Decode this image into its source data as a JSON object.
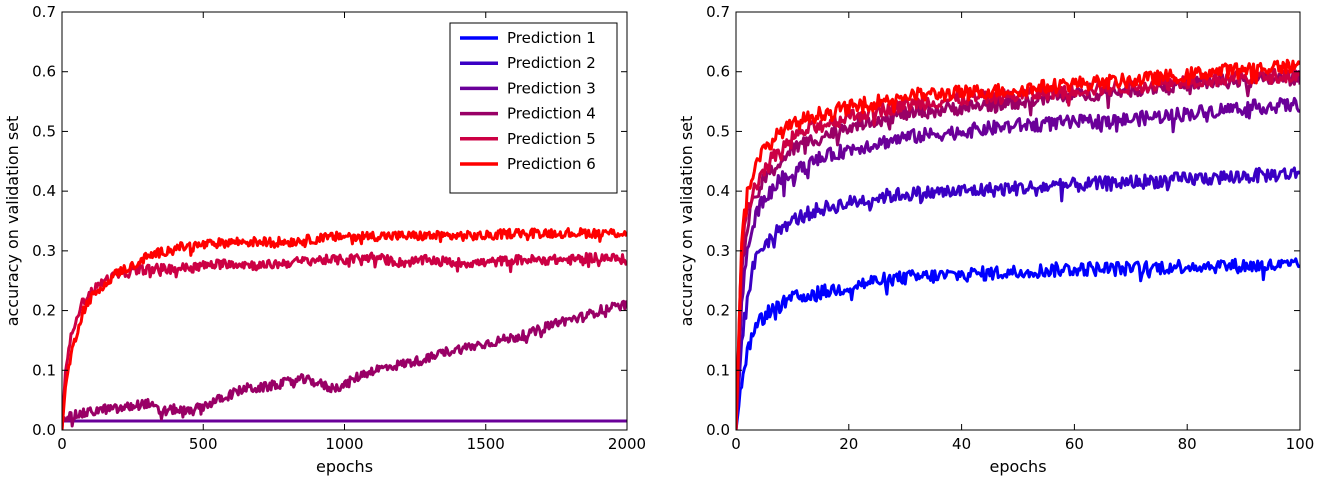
{
  "chart_data": [
    {
      "type": "line",
      "title": "",
      "xlabel": "epochs",
      "ylabel": "accuracy on validation set",
      "xlim": [
        0,
        2000
      ],
      "ylim": [
        0,
        0.7
      ],
      "xticks": [
        0,
        500,
        1000,
        1500,
        2000
      ],
      "yticks": [
        0.0,
        0.1,
        0.2,
        0.3,
        0.4,
        0.5,
        0.6,
        0.7
      ],
      "grid": false,
      "legend_position": "top-right",
      "series": [
        {
          "name": "Prediction 1",
          "color": "#0000ff",
          "x": [
            0,
            20,
            100,
            500,
            1000,
            1500,
            2000
          ],
          "y": [
            0.015,
            0.015,
            0.015,
            0.015,
            0.015,
            0.015,
            0.015
          ]
        },
        {
          "name": "Prediction 2",
          "color": "#3a00c4",
          "x": [
            0,
            20,
            100,
            500,
            1000,
            1500,
            2000
          ],
          "y": [
            0.015,
            0.015,
            0.015,
            0.015,
            0.015,
            0.015,
            0.015
          ]
        },
        {
          "name": "Prediction 3",
          "color": "#6a0099",
          "x": [
            0,
            20,
            100,
            500,
            1000,
            1500,
            2000
          ],
          "y": [
            0.015,
            0.015,
            0.015,
            0.015,
            0.015,
            0.015,
            0.015
          ]
        },
        {
          "name": "Prediction 4",
          "color": "#990066",
          "x": [
            0,
            50,
            100,
            150,
            200,
            250,
            300,
            350,
            400,
            450,
            500,
            550,
            600,
            650,
            700,
            750,
            800,
            850,
            900,
            950,
            1000,
            1050,
            1100,
            1150,
            1200,
            1250,
            1300,
            1350,
            1400,
            1450,
            1500,
            1550,
            1600,
            1650,
            1700,
            1750,
            1800,
            1850,
            1900,
            1950,
            2000
          ],
          "y": [
            0.02,
            0.025,
            0.03,
            0.035,
            0.035,
            0.04,
            0.045,
            0.03,
            0.035,
            0.03,
            0.04,
            0.05,
            0.06,
            0.07,
            0.07,
            0.075,
            0.08,
            0.085,
            0.08,
            0.07,
            0.075,
            0.09,
            0.1,
            0.105,
            0.11,
            0.115,
            0.12,
            0.13,
            0.135,
            0.14,
            0.145,
            0.15,
            0.155,
            0.16,
            0.17,
            0.18,
            0.185,
            0.19,
            0.2,
            0.205,
            0.21
          ]
        },
        {
          "name": "Prediction 5",
          "color": "#cc0044",
          "x": [
            0,
            10,
            25,
            50,
            75,
            100,
            150,
            200,
            250,
            300,
            400,
            500,
            600,
            700,
            800,
            900,
            1000,
            1100,
            1200,
            1300,
            1400,
            1500,
            1600,
            1700,
            1800,
            1900,
            2000
          ],
          "y": [
            0.0,
            0.08,
            0.14,
            0.19,
            0.215,
            0.23,
            0.25,
            0.26,
            0.265,
            0.27,
            0.27,
            0.275,
            0.28,
            0.275,
            0.28,
            0.285,
            0.285,
            0.29,
            0.28,
            0.285,
            0.28,
            0.28,
            0.285,
            0.285,
            0.285,
            0.29,
            0.285
          ]
        },
        {
          "name": "Prediction 6",
          "color": "#ff0000",
          "x": [
            0,
            10,
            25,
            50,
            75,
            100,
            150,
            200,
            250,
            300,
            400,
            500,
            600,
            700,
            800,
            900,
            1000,
            1100,
            1200,
            1300,
            1400,
            1500,
            1600,
            1700,
            1800,
            1900,
            2000
          ],
          "y": [
            0.0,
            0.06,
            0.11,
            0.16,
            0.2,
            0.22,
            0.245,
            0.265,
            0.275,
            0.29,
            0.305,
            0.31,
            0.315,
            0.315,
            0.315,
            0.32,
            0.325,
            0.325,
            0.325,
            0.325,
            0.325,
            0.325,
            0.33,
            0.33,
            0.33,
            0.33,
            0.33
          ]
        }
      ]
    },
    {
      "type": "line",
      "title": "",
      "xlabel": "epochs",
      "ylabel": "accuracy on validation set",
      "xlim": [
        0,
        100
      ],
      "ylim": [
        0,
        0.7
      ],
      "xticks": [
        0,
        20,
        40,
        60,
        80,
        100
      ],
      "yticks": [
        0.0,
        0.1,
        0.2,
        0.3,
        0.4,
        0.5,
        0.6,
        0.7
      ],
      "grid": false,
      "series": [
        {
          "name": "Prediction 1",
          "color": "#0000ff",
          "x": [
            0,
            1,
            2,
            3,
            4,
            5,
            6,
            8,
            10,
            12,
            15,
            20,
            25,
            30,
            40,
            50,
            60,
            70,
            80,
            90,
            100
          ],
          "y": [
            0.0,
            0.08,
            0.13,
            0.16,
            0.18,
            0.19,
            0.2,
            0.21,
            0.22,
            0.225,
            0.23,
            0.24,
            0.25,
            0.255,
            0.26,
            0.265,
            0.27,
            0.27,
            0.275,
            0.275,
            0.275
          ]
        },
        {
          "name": "Prediction 2",
          "color": "#3a00c4",
          "x": [
            0,
            1,
            2,
            3,
            4,
            5,
            6,
            8,
            10,
            12,
            15,
            20,
            25,
            30,
            40,
            50,
            60,
            70,
            80,
            90,
            100
          ],
          "y": [
            0.0,
            0.15,
            0.22,
            0.27,
            0.3,
            0.31,
            0.32,
            0.34,
            0.35,
            0.36,
            0.37,
            0.38,
            0.39,
            0.395,
            0.4,
            0.405,
            0.41,
            0.415,
            0.42,
            0.425,
            0.43
          ]
        },
        {
          "name": "Prediction 3",
          "color": "#6a0099",
          "x": [
            0,
            1,
            2,
            3,
            4,
            5,
            6,
            8,
            10,
            12,
            15,
            20,
            25,
            30,
            40,
            50,
            60,
            70,
            80,
            90,
            100
          ],
          "y": [
            0.0,
            0.22,
            0.3,
            0.34,
            0.37,
            0.39,
            0.4,
            0.42,
            0.43,
            0.44,
            0.455,
            0.47,
            0.48,
            0.49,
            0.5,
            0.51,
            0.515,
            0.52,
            0.53,
            0.54,
            0.545
          ]
        },
        {
          "name": "Prediction 4",
          "color": "#990066",
          "x": [
            0,
            1,
            2,
            3,
            4,
            5,
            6,
            8,
            10,
            12,
            15,
            20,
            25,
            30,
            40,
            50,
            60,
            70,
            80,
            90,
            100
          ],
          "y": [
            0.0,
            0.26,
            0.34,
            0.38,
            0.4,
            0.42,
            0.43,
            0.45,
            0.47,
            0.48,
            0.49,
            0.51,
            0.52,
            0.53,
            0.54,
            0.55,
            0.56,
            0.57,
            0.58,
            0.585,
            0.59
          ]
        },
        {
          "name": "Prediction 5",
          "color": "#cc0044",
          "x": [
            0,
            1,
            2,
            3,
            4,
            5,
            6,
            8,
            10,
            12,
            15,
            20,
            25,
            30,
            40,
            50,
            60,
            70,
            80,
            90,
            100
          ],
          "y": [
            0.0,
            0.3,
            0.37,
            0.4,
            0.42,
            0.44,
            0.45,
            0.47,
            0.49,
            0.5,
            0.51,
            0.525,
            0.535,
            0.545,
            0.555,
            0.56,
            0.57,
            0.575,
            0.585,
            0.59,
            0.595
          ]
        },
        {
          "name": "Prediction 6",
          "color": "#ff0000",
          "x": [
            0,
            1,
            2,
            3,
            4,
            5,
            6,
            8,
            10,
            12,
            15,
            20,
            25,
            30,
            40,
            50,
            60,
            70,
            80,
            90,
            100
          ],
          "y": [
            0.0,
            0.32,
            0.4,
            0.43,
            0.45,
            0.47,
            0.48,
            0.5,
            0.51,
            0.52,
            0.53,
            0.54,
            0.55,
            0.56,
            0.565,
            0.57,
            0.58,
            0.585,
            0.595,
            0.605,
            0.61
          ]
        }
      ]
    }
  ]
}
